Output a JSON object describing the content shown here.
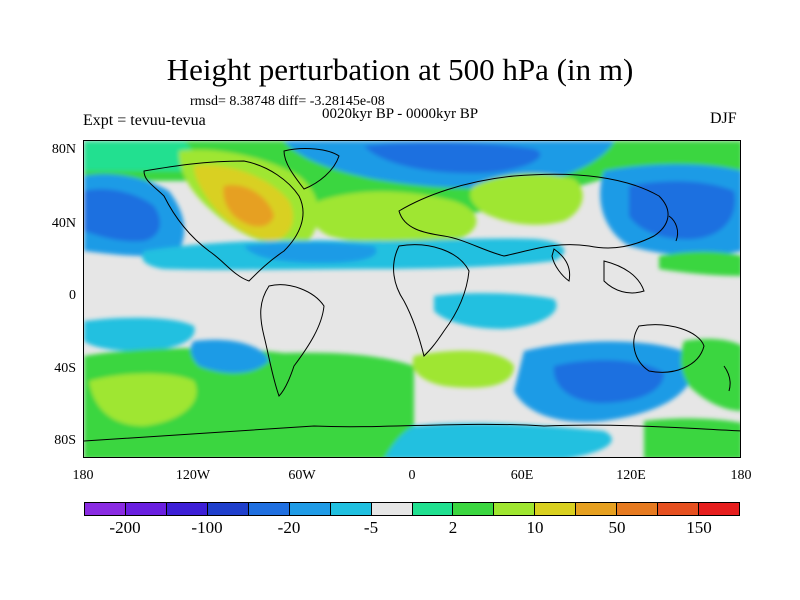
{
  "title": "Height perturbation at 500 hPa (in m)",
  "stats": "rmsd= 8.38748 diff= -3.28145e-08",
  "period": "0020kyr BP - 0000kyr BP",
  "experiment": "Expt = tevuu-tevua",
  "season": "DJF",
  "x_ticks": [
    "180",
    "120W",
    "60W",
    "0",
    "60E",
    "120E",
    "180"
  ],
  "y_ticks": [
    "80N",
    "40N",
    "0",
    "40S",
    "80S"
  ],
  "colorbar": {
    "colors": [
      "#8a2be2",
      "#6a1fe0",
      "#3d1fd6",
      "#1f3fcc",
      "#1f6fe0",
      "#1f9be6",
      "#20c0e0",
      "#e6e6e6",
      "#20e090",
      "#3bd640",
      "#9fe630",
      "#d9d020",
      "#e6a020",
      "#e67a20",
      "#e65020",
      "#e61e1e"
    ],
    "labels": [
      "-200",
      "-100",
      "-20",
      "-5",
      "2",
      "10",
      "50",
      "150"
    ]
  },
  "palette": {
    "blue_dark": "#1f6fe0",
    "blue_mid": "#1f9be6",
    "cyan": "#20c0e0",
    "grey": "#e6e6e6",
    "teal": "#20e090",
    "green": "#3bd640",
    "yellowgreen": "#9fe630",
    "yellow": "#d9d020",
    "orange": "#e6a020"
  }
}
